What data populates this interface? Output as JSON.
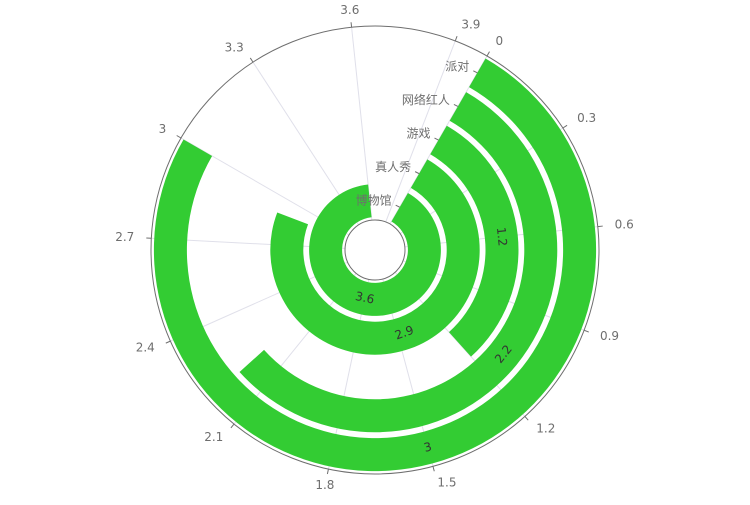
{
  "chart_data": {
    "type": "bar",
    "subtype": "polar-radial-bar",
    "categories": [
      "博物馆",
      "真人秀",
      "游戏",
      "网络红人",
      "派对"
    ],
    "values": [
      3.6,
      2.9,
      1.2,
      2.2,
      3
    ],
    "angle_axis": {
      "min": 0,
      "max": 4,
      "ticks": [
        0,
        0.3,
        0.6,
        0.9,
        1.2,
        1.5,
        1.8,
        2.1,
        2.4,
        2.7,
        3,
        3.3,
        3.6,
        3.9
      ],
      "tick_labels": [
        "0",
        "0.3",
        "0.6",
        "0.9",
        "1.2",
        "1.5",
        "1.8",
        "2.1",
        "2.4",
        "2.7",
        "3",
        "3.3",
        "3.6",
        "3.9"
      ],
      "direction": "clockwise"
    },
    "data_labels": [
      "3.6",
      "2.9",
      "1.2",
      "2.2",
      "3"
    ],
    "grid": true,
    "colors": {
      "bar": "#33cc33",
      "axis": "#6e6e6e",
      "split": "#e0e0ea",
      "label": "#333333"
    }
  }
}
